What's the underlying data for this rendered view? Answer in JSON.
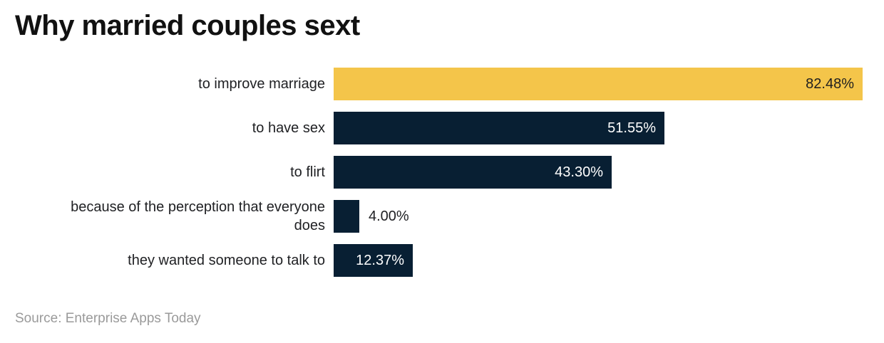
{
  "header": {
    "title": "Why married couples sext"
  },
  "footer": {
    "source": "Source: Enterprise Apps Today"
  },
  "colors": {
    "background": "#FFFFFF",
    "accent_yellow": "#F4C54A",
    "navy": "#081F33",
    "title_text": "#111111",
    "label_text": "#202124",
    "source_text": "#9A9A9A"
  },
  "chart_data": {
    "type": "bar",
    "orientation": "horizontal",
    "title": "Why married couples sext",
    "xlabel": "",
    "ylabel": "",
    "xlim": [
      0,
      82.48
    ],
    "grid": false,
    "legend": "none",
    "axis_ticks": "hidden",
    "source": "Source: Enterprise Apps Today",
    "categories": [
      "to improve marriage",
      "to have sex",
      "to flirt",
      "because of the perception that everyone does",
      "they wanted someone to talk to"
    ],
    "values": [
      82.48,
      51.55,
      43.3,
      4.0,
      12.37
    ],
    "bars": [
      {
        "label": "to improve marriage",
        "value": 82.48,
        "value_label": "82.48%",
        "color": "#F4C54A",
        "value_text_color": "#1F1F1F",
        "value_placement": "inside"
      },
      {
        "label": "to have sex",
        "value": 51.55,
        "value_label": "51.55%",
        "color": "#081F33",
        "value_text_color": "#FFFFFF",
        "value_placement": "inside"
      },
      {
        "label": "to flirt",
        "value": 43.3,
        "value_label": "43.30%",
        "color": "#081F33",
        "value_text_color": "#FFFFFF",
        "value_placement": "inside"
      },
      {
        "label": "because of the perception that everyone does",
        "value": 4.0,
        "value_label": "4.00%",
        "color": "#081F33",
        "value_text_color": "#202124",
        "value_placement": "outside"
      },
      {
        "label": "they wanted someone to talk to",
        "value": 12.37,
        "value_label": "12.37%",
        "color": "#081F33",
        "value_text_color": "#FFFFFF",
        "value_placement": "inside"
      }
    ]
  }
}
